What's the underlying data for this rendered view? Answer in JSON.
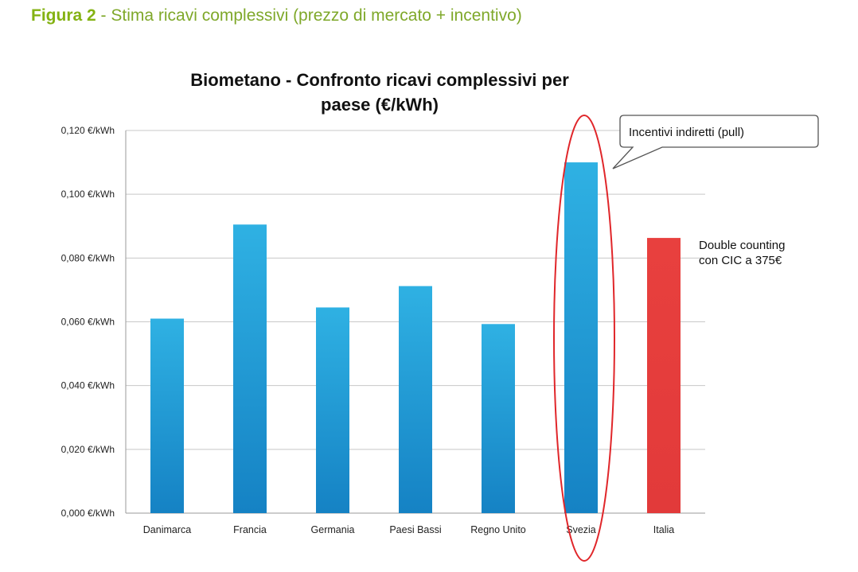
{
  "caption": {
    "label": "Figura 2",
    "text": " - Stima ricavi complessivi (prezzo di mercato + incentivo)"
  },
  "chart_data": {
    "type": "bar",
    "title": [
      "Biometano  - Confronto ricavi complessivi per",
      "paese (€/kWh)"
    ],
    "xlabel": "",
    "ylabel": "",
    "categories": [
      "Danimarca",
      "Francia",
      "Germania",
      "Paesi Bassi",
      "Regno Unito",
      "Svezia",
      "Italia"
    ],
    "values": [
      0.061,
      0.0905,
      0.0645,
      0.0712,
      0.0593,
      0.11,
      0.0863
    ],
    "ylim": [
      0,
      0.12
    ],
    "yticks": [
      0,
      0.02,
      0.04,
      0.06,
      0.08,
      0.1,
      0.12
    ],
    "ytick_labels": [
      "0,000 €/kWh",
      "0,020 €/kWh",
      "0,040 €/kWh",
      "0,060 €/kWh",
      "0,080 €/kWh",
      "0,100 €/kWh",
      "0,120 €/kWh"
    ],
    "grid": true,
    "bar_colors": [
      "#1b92d0",
      "#1b92d0",
      "#1b92d0",
      "#1b92d0",
      "#1b92d0",
      "#1b92d0",
      "#e53a3a"
    ],
    "highlight_category": "Svezia",
    "annotations": {
      "callout": "Incentivi indiretti (pull)",
      "italia_note": [
        "Double counting",
        "con CIC a 375€"
      ]
    }
  }
}
